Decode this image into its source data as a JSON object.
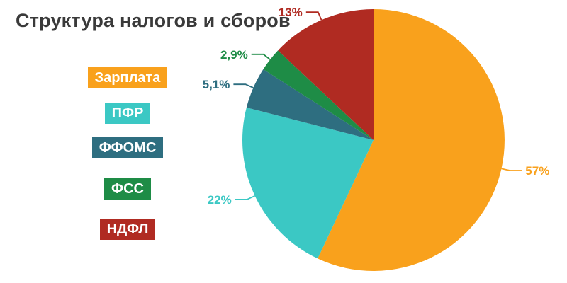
{
  "title": "Структура налогов и сборов",
  "chart_data": {
    "type": "pie",
    "title": "Структура налогов и сборов",
    "start_angle_deg": 0,
    "direction": "clockwise",
    "legend_position": "left",
    "slices": [
      {
        "label": "Зарплата",
        "value": 57,
        "pct_label": "57%",
        "color": "#F9A11C"
      },
      {
        "label": "ПФР",
        "value": 22,
        "pct_label": "22%",
        "color": "#3BC8C4"
      },
      {
        "label": "ФФОМС",
        "value": 5.1,
        "pct_label": "5,1%",
        "color": "#2E6E80"
      },
      {
        "label": "ФСС",
        "value": 2.9,
        "pct_label": "2,9%",
        "color": "#1E8C46"
      },
      {
        "label": "НДФЛ",
        "value": 13,
        "pct_label": "13%",
        "color": "#B02B22"
      }
    ]
  }
}
